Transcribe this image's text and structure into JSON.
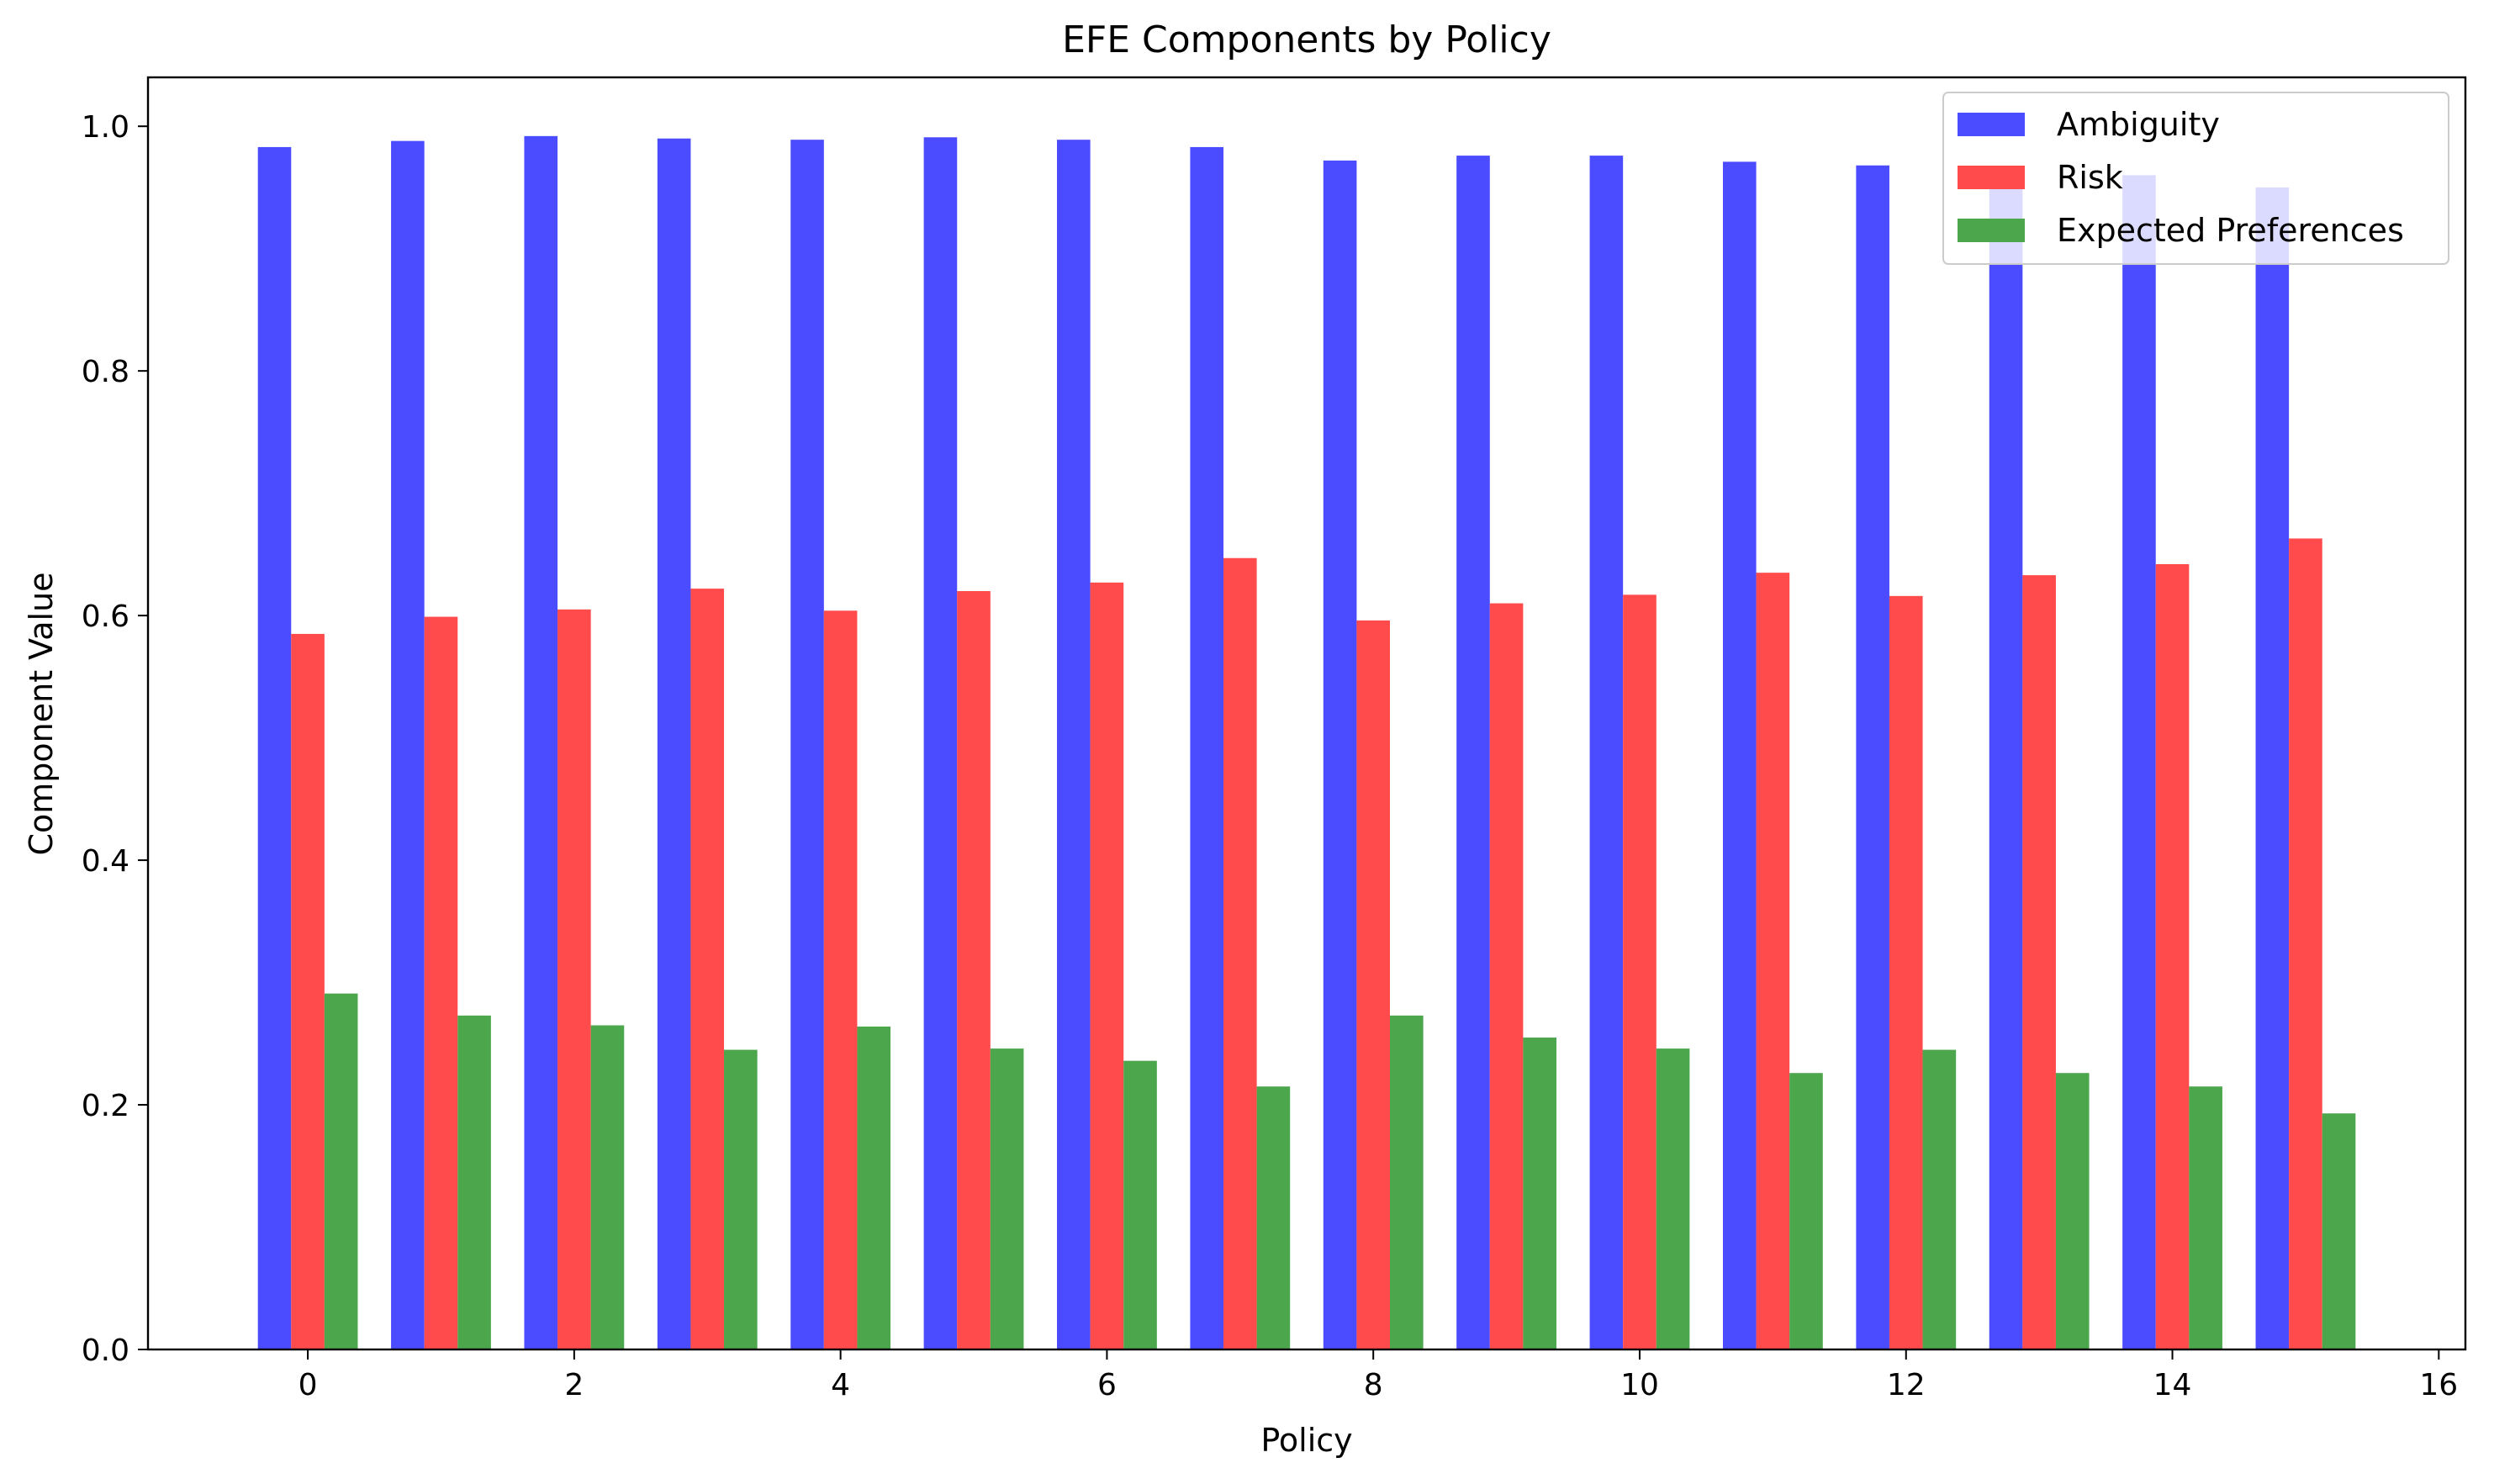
{
  "chart_data": {
    "type": "bar",
    "title": "EFE Components by Policy",
    "xlabel": "Policy",
    "ylabel": "Component Value",
    "xlim": [
      -1.2,
      16.2
    ],
    "ylim": [
      0,
      1.04
    ],
    "xticks": [
      0,
      2,
      4,
      6,
      8,
      10,
      12,
      14,
      16
    ],
    "yticks": [
      0.0,
      0.2,
      0.4,
      0.6,
      0.8,
      1.0
    ],
    "xtick_labels": [
      "0",
      "2",
      "4",
      "6",
      "8",
      "10",
      "12",
      "14",
      "16"
    ],
    "ytick_labels": [
      "0.0",
      "0.2",
      "0.4",
      "0.6",
      "0.8",
      "1.0"
    ],
    "categories": [
      0,
      1,
      2,
      3,
      4,
      5,
      6,
      7,
      8,
      9,
      10,
      11,
      12,
      13,
      14,
      15
    ],
    "bar_width": 0.25,
    "grid": false,
    "legend_position": "top-right",
    "series": [
      {
        "name": "Ambiguity",
        "color": "#4b4bff",
        "offset": -0.25,
        "values": [
          0.983,
          0.988,
          0.992,
          0.99,
          0.989,
          0.991,
          0.989,
          0.983,
          0.972,
          0.976,
          0.976,
          0.971,
          0.968,
          0.953,
          0.96,
          0.95
        ]
      },
      {
        "name": "Risk",
        "color": "#ff4b4b",
        "offset": 0,
        "values": [
          0.585,
          0.599,
          0.605,
          0.622,
          0.604,
          0.62,
          0.627,
          0.647,
          0.596,
          0.61,
          0.617,
          0.635,
          0.616,
          0.633,
          0.642,
          0.663
        ]
      },
      {
        "name": "Expected Preferences",
        "color": "#4ca64c",
        "offset": 0.25,
        "values": [
          0.291,
          0.273,
          0.265,
          0.245,
          0.264,
          0.246,
          0.236,
          0.215,
          0.273,
          0.255,
          0.246,
          0.226,
          0.245,
          0.226,
          0.215,
          0.193
        ]
      }
    ]
  }
}
